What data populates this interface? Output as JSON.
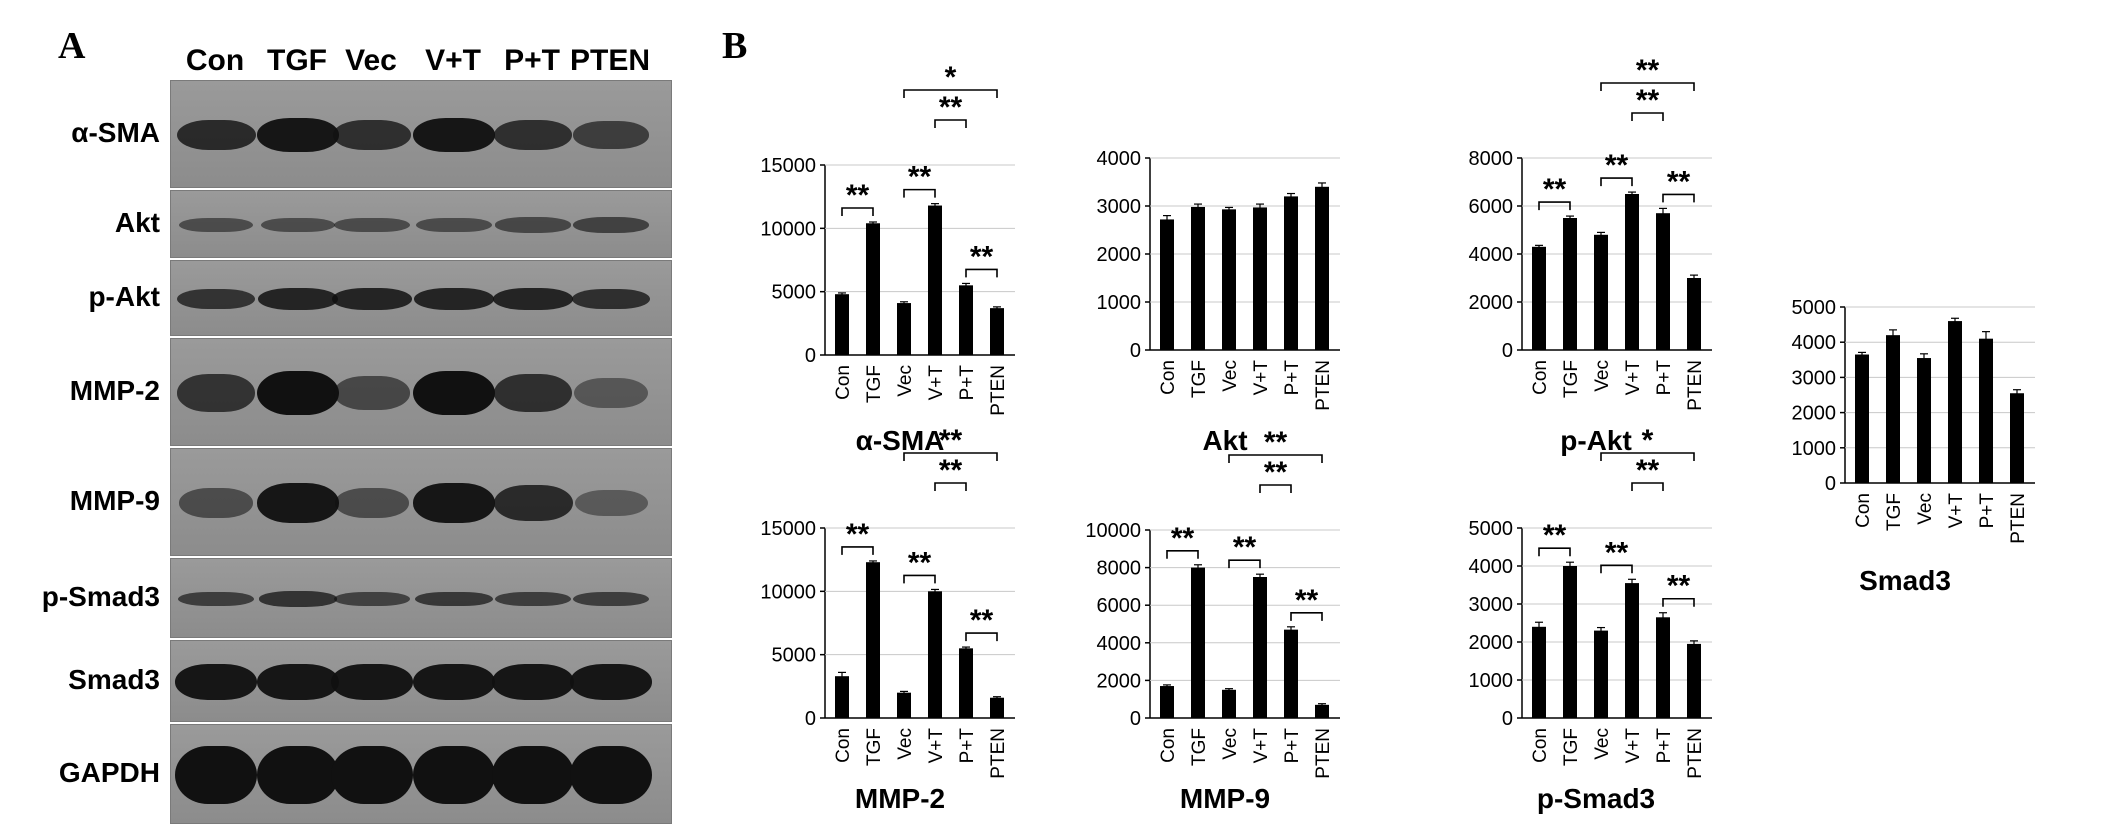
{
  "panel_labels": {
    "a": "A",
    "b": "B"
  },
  "lanes": [
    "Con",
    "TGF",
    "Vec",
    "V+T",
    "P+T",
    "PTEN"
  ],
  "blot_strips": [
    {
      "label": "α-SMA",
      "intensity": [
        0.75,
        0.95,
        0.7,
        0.95,
        0.7,
        0.55
      ]
    },
    {
      "label": "Akt",
      "intensity": [
        0.4,
        0.4,
        0.42,
        0.42,
        0.45,
        0.5
      ]
    },
    {
      "label": "p-Akt",
      "intensity": [
        0.65,
        0.8,
        0.8,
        0.8,
        0.8,
        0.7
      ]
    },
    {
      "label": "MMP-2",
      "intensity": [
        0.65,
        1.0,
        0.45,
        1.0,
        0.7,
        0.3
      ]
    },
    {
      "label": "MMP-9",
      "intensity": [
        0.4,
        0.95,
        0.4,
        0.95,
        0.75,
        0.25
      ]
    },
    {
      "label": "p-Smad3",
      "intensity": [
        0.55,
        0.65,
        0.5,
        0.6,
        0.55,
        0.55
      ]
    },
    {
      "label": "Smad3",
      "intensity": [
        0.95,
        0.95,
        0.95,
        0.95,
        0.95,
        0.95
      ]
    },
    {
      "label": "GAPDH",
      "intensity": [
        1.0,
        1.0,
        1.0,
        1.0,
        1.0,
        1.0
      ]
    }
  ],
  "chart_data": [
    {
      "type": "bar",
      "title": "α-SMA",
      "categories": [
        "Con",
        "TGF",
        "Vec",
        "V+T",
        "P+T",
        "PTEN"
      ],
      "values": [
        4800,
        10400,
        4100,
        11800,
        5500,
        3700
      ],
      "errors": [
        100,
        100,
        100,
        150,
        150,
        100
      ],
      "ylim": [
        0,
        15000
      ],
      "yticks": [
        0,
        5000,
        10000,
        15000
      ],
      "ytick_labels": [
        "0",
        "5000",
        "10000",
        "15000"
      ],
      "xlabel": "",
      "ylabel": "",
      "sig": [
        {
          "from": 0,
          "to": 1,
          "label": "**"
        },
        {
          "from": 2,
          "to": 3,
          "label": "**"
        },
        {
          "from": 3,
          "to": 4,
          "label": "**"
        },
        {
          "from": 2,
          "to": 5,
          "label": "*"
        },
        {
          "from": 4,
          "to": 5,
          "label": "**"
        }
      ]
    },
    {
      "type": "bar",
      "title": "Akt",
      "categories": [
        "Con",
        "TGF",
        "Vec",
        "V+T",
        "P+T",
        "PTEN"
      ],
      "values": [
        2720,
        2980,
        2930,
        2970,
        3200,
        3400
      ],
      "errors": [
        80,
        60,
        40,
        70,
        60,
        80
      ],
      "ylim": [
        0,
        4000
      ],
      "yticks": [
        0,
        1000,
        2000,
        3000,
        4000
      ],
      "ytick_labels": [
        "0",
        "1000",
        "2000",
        "3000",
        "4000"
      ],
      "xlabel": "",
      "ylabel": "",
      "sig": []
    },
    {
      "type": "bar",
      "title": "p-Akt",
      "categories": [
        "Con",
        "TGF",
        "Vec",
        "V+T",
        "P+T",
        "PTEN"
      ],
      "values": [
        4300,
        5500,
        4800,
        6500,
        5700,
        3000
      ],
      "errors": [
        60,
        80,
        100,
        80,
        200,
        120
      ],
      "ylim": [
        0,
        8000
      ],
      "yticks": [
        0,
        2000,
        4000,
        6000,
        8000
      ],
      "ytick_labels": [
        "0",
        "2000",
        "4000",
        "6000",
        "8000"
      ],
      "xlabel": "",
      "ylabel": "",
      "sig": [
        {
          "from": 0,
          "to": 1,
          "label": "**"
        },
        {
          "from": 2,
          "to": 3,
          "label": "**"
        },
        {
          "from": 3,
          "to": 4,
          "label": "**"
        },
        {
          "from": 2,
          "to": 5,
          "label": "**"
        },
        {
          "from": 4,
          "to": 5,
          "label": "**"
        }
      ]
    },
    {
      "type": "bar",
      "title": "Smad3",
      "categories": [
        "Con",
        "TGF",
        "Vec",
        "V+T",
        "P+T",
        "PTEN"
      ],
      "values": [
        3650,
        4200,
        3550,
        4600,
        4100,
        2550
      ],
      "errors": [
        60,
        150,
        120,
        80,
        200,
        100
      ],
      "ylim": [
        0,
        5000
      ],
      "yticks": [
        0,
        1000,
        2000,
        3000,
        4000,
        5000
      ],
      "ytick_labels": [
        "0",
        "1000",
        "2000",
        "3000",
        "4000",
        "5000"
      ],
      "xlabel": "",
      "ylabel": "",
      "sig": []
    },
    {
      "type": "bar",
      "title": "MMP-2",
      "categories": [
        "Con",
        "TGF",
        "Vec",
        "V+T",
        "P+T",
        "PTEN"
      ],
      "values": [
        3300,
        12300,
        2000,
        10000,
        5500,
        1600
      ],
      "errors": [
        300,
        100,
        100,
        150,
        100,
        80
      ],
      "ylim": [
        0,
        15000
      ],
      "yticks": [
        0,
        5000,
        10000,
        15000
      ],
      "ytick_labels": [
        "0",
        "5000",
        "10000",
        "15000"
      ],
      "xlabel": "",
      "ylabel": "",
      "sig": [
        {
          "from": 0,
          "to": 1,
          "label": "**"
        },
        {
          "from": 2,
          "to": 3,
          "label": "**"
        },
        {
          "from": 3,
          "to": 4,
          "label": "**"
        },
        {
          "from": 2,
          "to": 5,
          "label": "**"
        },
        {
          "from": 4,
          "to": 5,
          "label": "**"
        }
      ]
    },
    {
      "type": "bar",
      "title": "MMP-9",
      "categories": [
        "Con",
        "TGF",
        "Vec",
        "V+T",
        "P+T",
        "PTEN"
      ],
      "values": [
        1700,
        8000,
        1500,
        7500,
        4700,
        700
      ],
      "errors": [
        60,
        150,
        60,
        150,
        150,
        60
      ],
      "ylim": [
        0,
        10000
      ],
      "yticks": [
        0,
        2000,
        4000,
        6000,
        8000,
        10000
      ],
      "ytick_labels": [
        "0",
        "2000",
        "4000",
        "6000",
        "8000",
        "10000"
      ],
      "xlabel": "",
      "ylabel": "",
      "sig": [
        {
          "from": 0,
          "to": 1,
          "label": "**"
        },
        {
          "from": 2,
          "to": 3,
          "label": "**"
        },
        {
          "from": 3,
          "to": 4,
          "label": "**"
        },
        {
          "from": 2,
          "to": 5,
          "label": "**"
        },
        {
          "from": 4,
          "to": 5,
          "label": "**"
        }
      ]
    },
    {
      "type": "bar",
      "title": "p-Smad3",
      "categories": [
        "Con",
        "TGF",
        "Vec",
        "V+T",
        "P+T",
        "PTEN"
      ],
      "values": [
        2400,
        4000,
        2300,
        3550,
        2650,
        1950
      ],
      "errors": [
        120,
        100,
        80,
        100,
        120,
        80
      ],
      "ylim": [
        0,
        5000
      ],
      "yticks": [
        0,
        1000,
        2000,
        3000,
        4000,
        5000
      ],
      "ytick_labels": [
        "0",
        "1000",
        "2000",
        "3000",
        "4000",
        "5000"
      ],
      "xlabel": "",
      "ylabel": "",
      "sig": [
        {
          "from": 0,
          "to": 1,
          "label": "**"
        },
        {
          "from": 2,
          "to": 3,
          "label": "**"
        },
        {
          "from": 3,
          "to": 4,
          "label": "**"
        },
        {
          "from": 2,
          "to": 5,
          "label": "*"
        },
        {
          "from": 4,
          "to": 5,
          "label": "**"
        }
      ]
    }
  ]
}
